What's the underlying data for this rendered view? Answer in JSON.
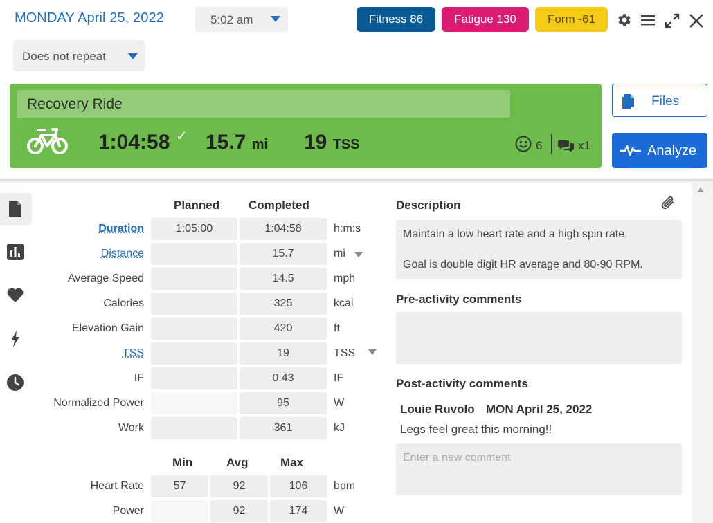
{
  "header": {
    "date": "MONDAY April 25, 2022",
    "time": "5:02 am",
    "repeat": "Does not repeat",
    "fitness": "Fitness 86",
    "fatigue": "Fatigue 130",
    "form": "Form -61",
    "colors": {
      "fitness": "#0a5a95",
      "fatigue": "#db1a72",
      "form": "#f5cb18",
      "accent": "#1f6fc4",
      "workout_green": "#6dbb4a"
    }
  },
  "workout": {
    "title": "Recovery Ride",
    "duration": "1:04:58",
    "distance": "15.7",
    "distance_unit": "mi",
    "tss": "19",
    "tss_unit": "TSS",
    "feel_count": "6",
    "comment_count": "x1"
  },
  "actions": {
    "files": "Files",
    "analyze": "Analyze"
  },
  "table": {
    "planned_header": "Planned",
    "completed_header": "Completed",
    "rows": [
      {
        "label": "Duration",
        "planned": "1:05:00",
        "completed": "1:04:58",
        "unit": "h:m:s"
      },
      {
        "label": "Distance",
        "planned": "",
        "completed": "15.7",
        "unit": "mi"
      },
      {
        "label": "Average Speed",
        "planned": "",
        "completed": "14.5",
        "unit": "mph"
      },
      {
        "label": "Calories",
        "planned": "",
        "completed": "325",
        "unit": "kcal"
      },
      {
        "label": "Elevation Gain",
        "planned": "",
        "completed": "420",
        "unit": "ft"
      },
      {
        "label": "TSS",
        "planned": "",
        "completed": "19",
        "unit": "TSS"
      },
      {
        "label": "IF",
        "planned": "",
        "completed": "0.43",
        "unit": "IF"
      },
      {
        "label": "Normalized Power",
        "planned": "",
        "completed": "95",
        "unit": "W"
      },
      {
        "label": "Work",
        "planned": "",
        "completed": "361",
        "unit": "kJ"
      }
    ],
    "mma_headers": [
      "Min",
      "Avg",
      "Max"
    ],
    "mma_rows": [
      {
        "label": "Heart Rate",
        "min": "57",
        "avg": "92",
        "max": "106",
        "unit": "bpm"
      },
      {
        "label": "Power",
        "min": "",
        "avg": "92",
        "max": "174",
        "unit": "W"
      }
    ]
  },
  "description": {
    "title": "Description",
    "line1": "Maintain a low heart rate and a high spin rate.",
    "line2": "Goal is double digit HR average and 80-90 RPM."
  },
  "pre_comments": {
    "title": "Pre-activity comments"
  },
  "post_comments": {
    "title": "Post-activity comments",
    "author": "Louie Ruvolo",
    "date": "MON April 25, 2022",
    "text": "Legs feel great this morning!!",
    "new_placeholder": "Enter a new comment"
  },
  "icons": [
    "gear-icon",
    "menu-icon",
    "expand-icon",
    "close-icon",
    "bike-icon",
    "checkmark-icon",
    "smiley-icon",
    "comments-icon",
    "file-icon",
    "pulse-icon",
    "document-icon",
    "bar-chart-icon",
    "heart-icon",
    "lightning-icon",
    "clock-icon",
    "paperclip-icon"
  ]
}
